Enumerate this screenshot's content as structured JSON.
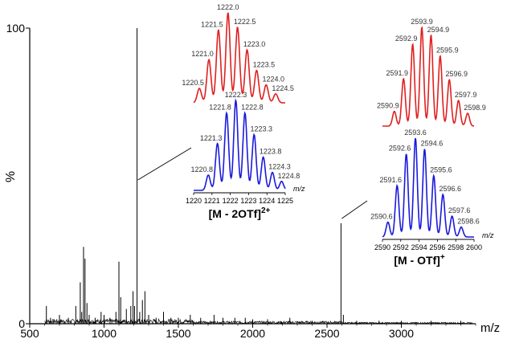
{
  "chart_data": {
    "type": "line",
    "title": "",
    "xlabel": "m/z",
    "ylabel": "%",
    "xlim": [
      500,
      3500
    ],
    "ylim": [
      0,
      100
    ],
    "x_ticks": [
      500,
      1000,
      1500,
      2000,
      2500,
      3000
    ],
    "y_ticks": [
      0,
      100
    ],
    "main_color": "#000000",
    "main_peaks": [
      [
        612,
        6
      ],
      [
        640,
        2
      ],
      [
        700,
        3
      ],
      [
        760,
        2
      ],
      [
        810,
        6
      ],
      [
        840,
        14
      ],
      [
        850,
        4
      ],
      [
        862,
        26
      ],
      [
        872,
        22
      ],
      [
        885,
        7
      ],
      [
        900,
        3
      ],
      [
        940,
        2
      ],
      [
        980,
        4
      ],
      [
        1000,
        3
      ],
      [
        1040,
        2
      ],
      [
        1080,
        4
      ],
      [
        1100,
        21
      ],
      [
        1112,
        9
      ],
      [
        1150,
        5
      ],
      [
        1180,
        6
      ],
      [
        1195,
        11
      ],
      [
        1205,
        6
      ],
      [
        1222,
        100
      ],
      [
        1240,
        4
      ],
      [
        1258,
        8
      ],
      [
        1275,
        11
      ],
      [
        1300,
        3
      ],
      [
        1350,
        2
      ],
      [
        1400,
        4
      ],
      [
        1450,
        2
      ],
      [
        1500,
        2
      ],
      [
        1580,
        3
      ],
      [
        1650,
        2
      ],
      [
        1740,
        3
      ],
      [
        1800,
        2
      ],
      [
        1880,
        2
      ],
      [
        1950,
        2
      ],
      [
        2000,
        1.5
      ],
      [
        2100,
        1.5
      ],
      [
        2250,
        2
      ],
      [
        2400,
        1
      ],
      [
        2594,
        34
      ],
      [
        2610,
        3
      ],
      [
        2700,
        1
      ],
      [
        2850,
        1
      ],
      [
        3000,
        1
      ],
      [
        3200,
        1
      ],
      [
        3400,
        1
      ]
    ],
    "annotations": [
      {
        "id": "dication",
        "label_main": "[M - 2OTf]",
        "label_sup": "2+",
        "points_to_mz": 1222,
        "simulated_color": "#e02020",
        "experimental_color": "#1a1adc",
        "axis_label": "m/z",
        "x_ticks": [
          "1220",
          "1221",
          "1222",
          "1223",
          "1224",
          "1225"
        ],
        "simulated": [
          {
            "mz": 1220.5,
            "label": "1220.5",
            "rel": 0.16
          },
          {
            "mz": 1221.0,
            "label": "1221.0",
            "rel": 0.48
          },
          {
            "mz": 1221.5,
            "label": "1221.5",
            "rel": 0.81
          },
          {
            "mz": 1222.0,
            "label": "1222.0",
            "rel": 1.0
          },
          {
            "mz": 1222.5,
            "label": "1222.5",
            "rel": 0.84
          },
          {
            "mz": 1223.0,
            "label": "1223.0",
            "rel": 0.59
          },
          {
            "mz": 1223.5,
            "label": "1223.5",
            "rel": 0.36
          },
          {
            "mz": 1224.0,
            "label": "1224.0",
            "rel": 0.2
          },
          {
            "mz": 1224.5,
            "label": "1224.5",
            "rel": 0.1
          }
        ],
        "experimental": [
          {
            "mz": 1220.8,
            "label": "1220.8",
            "rel": 0.17
          },
          {
            "mz": 1221.3,
            "label": "1221.3",
            "rel": 0.52
          },
          {
            "mz": 1221.8,
            "label": "1221.8",
            "rel": 0.86
          },
          {
            "mz": 1222.3,
            "label": "1222.3",
            "rel": 1.0
          },
          {
            "mz": 1222.8,
            "label": "1222.8",
            "rel": 0.86
          },
          {
            "mz": 1223.3,
            "label": "1223.3",
            "rel": 0.62
          },
          {
            "mz": 1223.8,
            "label": "1223.8",
            "rel": 0.37
          },
          {
            "mz": 1224.3,
            "label": "1224.3",
            "rel": 0.2
          },
          {
            "mz": 1224.8,
            "label": "1224.8",
            "rel": 0.1
          }
        ]
      },
      {
        "id": "monocation",
        "label_main": "[M - OTf]",
        "label_sup": "+",
        "points_to_mz": 2594,
        "simulated_color": "#e02020",
        "experimental_color": "#1a1adc",
        "axis_label": "m/z",
        "x_ticks": [
          "2590",
          "2592",
          "2594",
          "2596",
          "2598",
          "2600"
        ],
        "simulated": [
          {
            "mz": 2590.9,
            "label": "2590.9",
            "rel": 0.15
          },
          {
            "mz": 2591.9,
            "label": "2591.9",
            "rel": 0.48
          },
          {
            "mz": 2592.9,
            "label": "2592.9",
            "rel": 0.83
          },
          {
            "mz": 2593.9,
            "label": "2593.9",
            "rel": 1.0
          },
          {
            "mz": 2594.9,
            "label": "2594.9",
            "rel": 0.92
          },
          {
            "mz": 2595.9,
            "label": "2595.9",
            "rel": 0.71
          },
          {
            "mz": 2596.9,
            "label": "2596.9",
            "rel": 0.47
          },
          {
            "mz": 2597.9,
            "label": "2597.9",
            "rel": 0.26
          },
          {
            "mz": 2598.9,
            "label": "2598.9",
            "rel": 0.13
          }
        ],
        "experimental": [
          {
            "mz": 2590.6,
            "label": "2590.6",
            "rel": 0.15
          },
          {
            "mz": 2591.6,
            "label": "2591.6",
            "rel": 0.52
          },
          {
            "mz": 2592.6,
            "label": "2592.6",
            "rel": 0.84
          },
          {
            "mz": 2593.6,
            "label": "2593.6",
            "rel": 1.0
          },
          {
            "mz": 2594.6,
            "label": "2594.6",
            "rel": 0.89
          },
          {
            "mz": 2595.6,
            "label": "2595.6",
            "rel": 0.62
          },
          {
            "mz": 2596.6,
            "label": "2596.6",
            "rel": 0.43
          },
          {
            "mz": 2597.6,
            "label": "2597.6",
            "rel": 0.21
          },
          {
            "mz": 2598.6,
            "label": "2598.6",
            "rel": 0.1
          }
        ]
      }
    ]
  }
}
